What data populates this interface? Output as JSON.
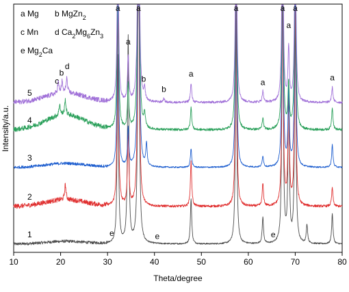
{
  "chart_data": {
    "type": "line",
    "title": "",
    "xlabel": "Theta/degree",
    "ylabel": "Intensity/a.u.",
    "xlim": [
      10,
      80
    ],
    "xticks": [
      10,
      20,
      30,
      40,
      50,
      60,
      70,
      80
    ],
    "grid": false,
    "legend": [
      {
        "key": "a",
        "phase": "Mg"
      },
      {
        "key": "b",
        "phase": "MgZn",
        "sub": "2"
      },
      {
        "key": "c",
        "phase": "Mn"
      },
      {
        "key": "d",
        "phase": "Ca2Mg6Zn3",
        "parts": [
          [
            "Ca",
            ""
          ],
          [
            "2",
            "sub"
          ],
          [
            "Mg",
            ""
          ],
          [
            "6",
            "sub"
          ],
          [
            "Zn",
            ""
          ],
          [
            "3",
            "sub"
          ]
        ]
      },
      {
        "key": "e",
        "phase": "Mg2Ca",
        "parts": [
          [
            "Mg",
            ""
          ],
          [
            "2",
            "sub"
          ],
          [
            "Ca",
            ""
          ]
        ]
      }
    ],
    "legend_placement": "top-left",
    "series": [
      {
        "name": "1",
        "color": "#4a4a4a",
        "peaks": [
          [
            32.2,
            50
          ],
          [
            34.4,
            55
          ],
          [
            36.6,
            100
          ],
          [
            47.8,
            12
          ],
          [
            57.4,
            60
          ],
          [
            63.1,
            7
          ],
          [
            67.3,
            70
          ],
          [
            68.6,
            40
          ],
          [
            70.0,
            60
          ],
          [
            72.5,
            5
          ],
          [
            77.9,
            8
          ]
        ]
      },
      {
        "name": "2",
        "color": "#e03030",
        "peaks": [
          [
            21.0,
            4
          ],
          [
            32.2,
            52
          ],
          [
            34.4,
            20
          ],
          [
            36.6,
            100
          ],
          [
            47.8,
            12
          ],
          [
            57.4,
            60
          ],
          [
            63.1,
            6
          ],
          [
            67.3,
            60
          ],
          [
            68.6,
            30
          ],
          [
            70.0,
            55
          ],
          [
            77.9,
            5
          ]
        ]
      },
      {
        "name": "3",
        "color": "#1f5fcf",
        "peaks": [
          [
            32.2,
            50
          ],
          [
            34.4,
            10
          ],
          [
            36.6,
            100
          ],
          [
            38.3,
            6
          ],
          [
            47.8,
            5
          ],
          [
            57.4,
            60
          ],
          [
            63.1,
            3
          ],
          [
            67.3,
            60
          ],
          [
            68.6,
            20
          ],
          [
            70.0,
            55
          ],
          [
            77.9,
            6
          ]
        ]
      },
      {
        "name": "4",
        "color": "#2aa05a",
        "peaks": [
          [
            19.8,
            3
          ],
          [
            21.0,
            4
          ],
          [
            32.2,
            50
          ],
          [
            34.4,
            12
          ],
          [
            36.6,
            100
          ],
          [
            37.9,
            4
          ],
          [
            47.8,
            6
          ],
          [
            57.4,
            60
          ],
          [
            63.1,
            3
          ],
          [
            67.3,
            60
          ],
          [
            68.6,
            12
          ],
          [
            70.0,
            55
          ],
          [
            77.9,
            6
          ]
        ]
      },
      {
        "name": "5",
        "color": "#a070d8",
        "peaks": [
          [
            19.5,
            3
          ],
          [
            20.3,
            3
          ],
          [
            21.3,
            4
          ],
          [
            32.2,
            50
          ],
          [
            34.4,
            12
          ],
          [
            36.6,
            100
          ],
          [
            37.9,
            3
          ],
          [
            42.0,
            1
          ],
          [
            47.8,
            5
          ],
          [
            57.4,
            60
          ],
          [
            63.1,
            3
          ],
          [
            67.3,
            60
          ],
          [
            68.6,
            14
          ],
          [
            70.0,
            55
          ],
          [
            77.9,
            4
          ]
        ]
      }
    ],
    "annotations": [
      {
        "text": "a",
        "x": 32.2,
        "series": "top"
      },
      {
        "text": "a",
        "x": 36.6,
        "series": "top"
      },
      {
        "text": "a",
        "x": 57.4,
        "series": "top"
      },
      {
        "text": "a",
        "x": 67.3,
        "series": "top"
      },
      {
        "text": "a",
        "x": 70.0,
        "series": "top"
      },
      {
        "text": "a",
        "x": 68.6,
        "series": "5",
        "dy": -22
      },
      {
        "text": "a",
        "x": 34.4,
        "series": "5",
        "dy": -14
      },
      {
        "text": "b",
        "x": 37.7,
        "series": "5",
        "dy": -10
      },
      {
        "text": "b",
        "x": 42.0,
        "series": "5",
        "dy": -9
      },
      {
        "text": "a",
        "x": 47.8,
        "series": "5",
        "dy": -10
      },
      {
        "text": "a",
        "x": 63.1,
        "series": "5",
        "dy": -8
      },
      {
        "text": "a",
        "x": 77.9,
        "series": "5",
        "dy": -10
      },
      {
        "text": "c",
        "x": 19.2,
        "series": "5",
        "dy": -10
      },
      {
        "text": "b",
        "x": 20.2,
        "series": "5",
        "dy": -12
      },
      {
        "text": "d",
        "x": 21.4,
        "series": "5",
        "dy": -18
      },
      {
        "text": "e",
        "x": 30.9,
        "series": "1",
        "dy": -6
      },
      {
        "text": "e",
        "x": 40.6,
        "series": "1",
        "dy": -6
      },
      {
        "text": "e",
        "x": 65.3,
        "series": "1",
        "dy": -6
      }
    ]
  }
}
